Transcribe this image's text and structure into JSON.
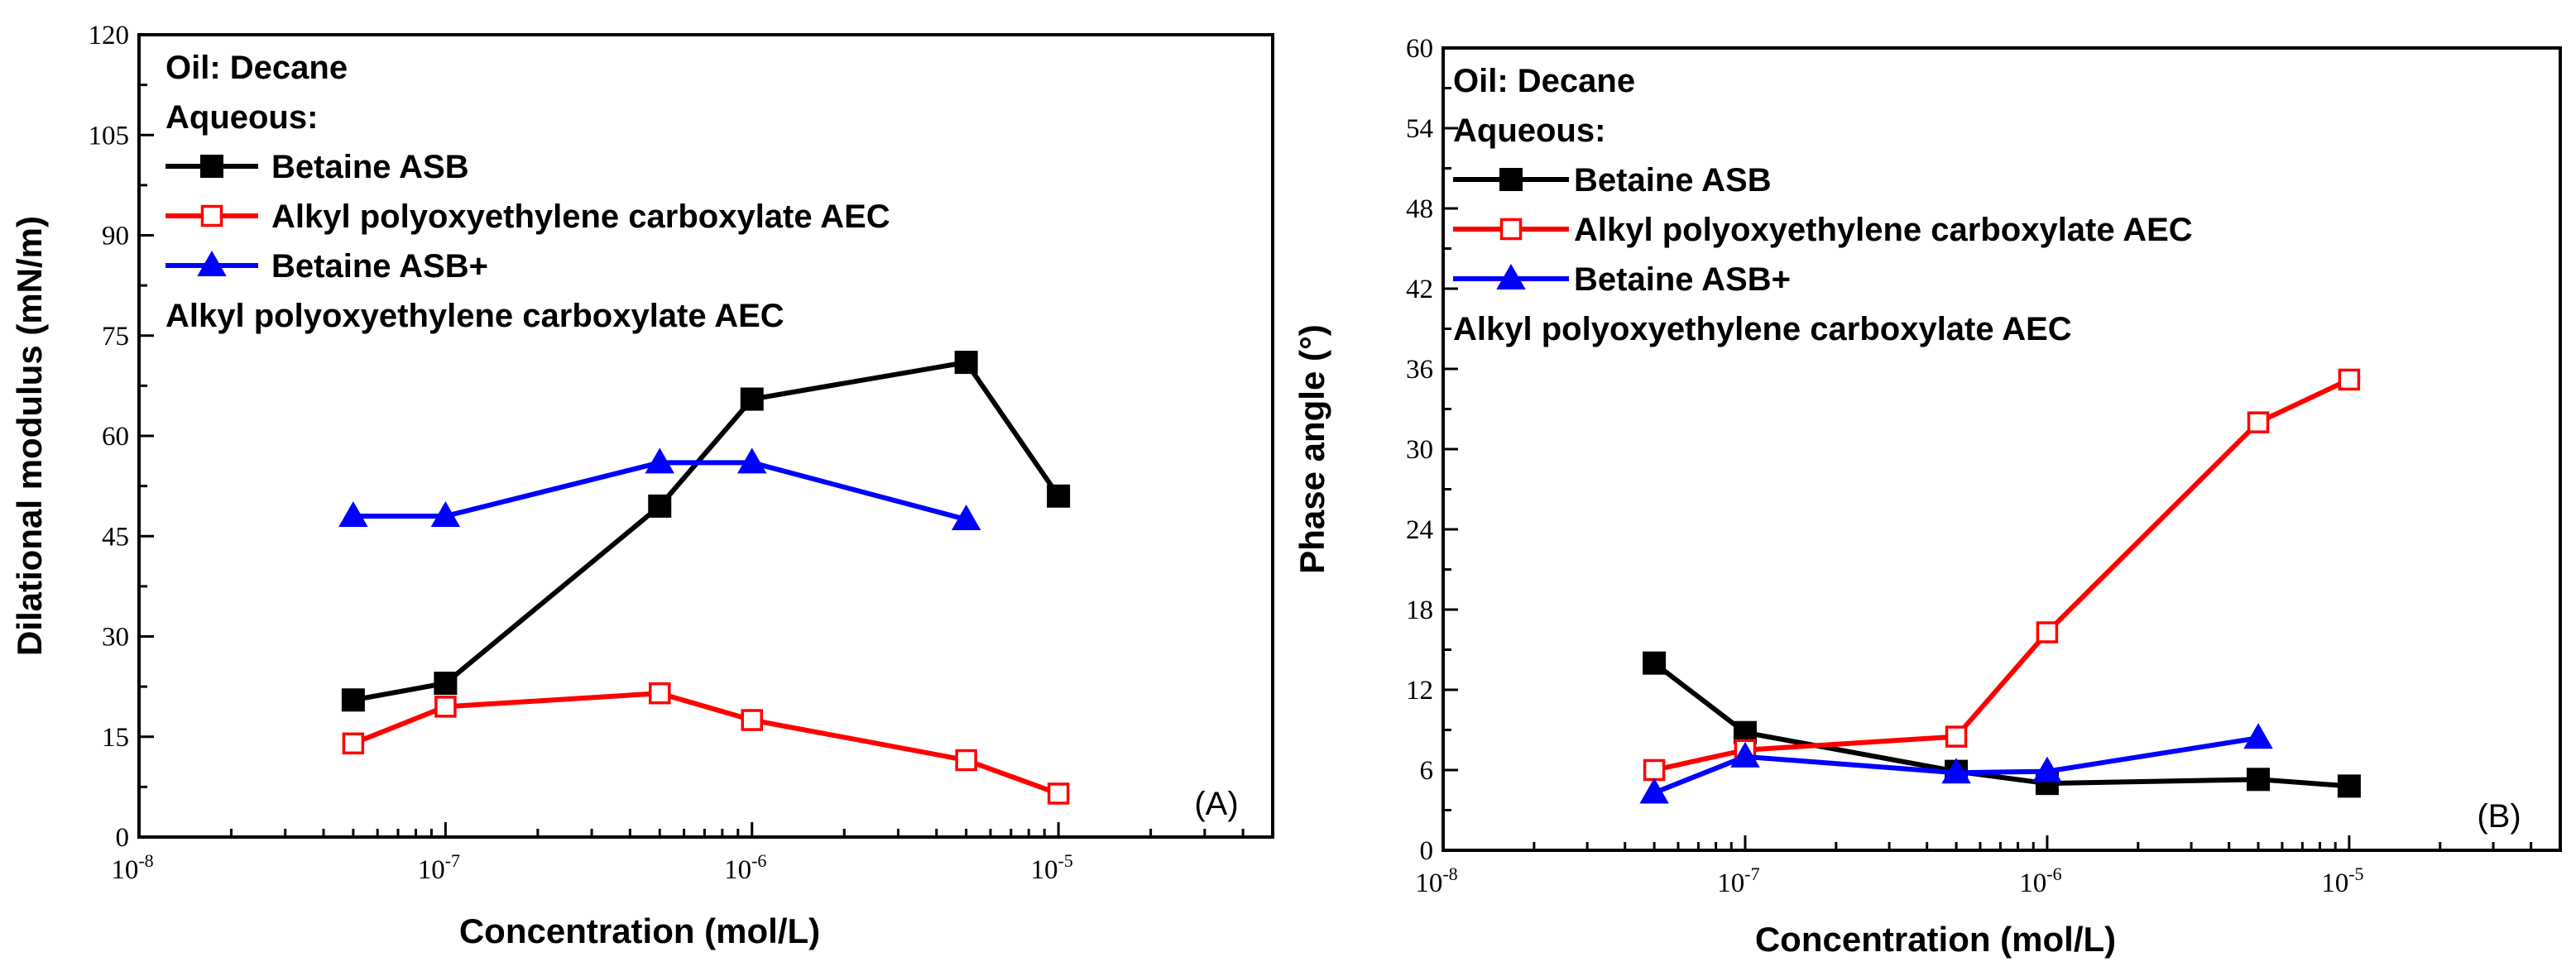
{
  "chart_data": [
    {
      "panel": "A",
      "type": "line",
      "title": "",
      "panel_label": "(A)",
      "xlabel": "Concentration (mol/L)",
      "ylabel": "Dilational modulus (mN/m)",
      "xscale": "log",
      "xlim": [
        1e-08,
        5e-05
      ],
      "ylim": [
        0,
        120
      ],
      "yticks": [
        0,
        15,
        30,
        45,
        60,
        75,
        90,
        105,
        120
      ],
      "xticks": [
        {
          "value": 1e-08,
          "base": "10",
          "exp": "-8"
        },
        {
          "value": 1e-07,
          "base": "10",
          "exp": "-7"
        },
        {
          "value": 1e-06,
          "base": "10",
          "exp": "-6"
        },
        {
          "value": 1e-05,
          "base": "10",
          "exp": "-5"
        }
      ],
      "legend": {
        "position": "top-left",
        "oil_label": "Oil:  Decane",
        "aqueous_label": "Aqueous:",
        "extra_line": "Alkyl polyoxyethylene carboxylate AEC"
      },
      "series": [
        {
          "name": "Betaine ASB",
          "color": "#000000",
          "marker": "square-filled",
          "x": [
            5e-08,
            1e-07,
            5e-07,
            1e-06,
            5e-06,
            1e-05
          ],
          "y": [
            20.5,
            23,
            49.5,
            65.5,
            71,
            51
          ]
        },
        {
          "name": "Alkyl polyoxyethylene carboxylate AEC",
          "color": "#ff0000",
          "marker": "square-open",
          "x": [
            5e-08,
            1e-07,
            5e-07,
            1e-06,
            5e-06,
            1e-05
          ],
          "y": [
            14,
            19.5,
            21.5,
            17.5,
            11.5,
            6.5
          ]
        },
        {
          "name": "Betaine ASB+",
          "color": "#0000ff",
          "marker": "triangle-filled",
          "x": [
            5e-08,
            1e-07,
            5e-07,
            1e-06,
            5e-06
          ],
          "y": [
            48,
            48,
            56,
            56,
            47.5
          ]
        }
      ]
    },
    {
      "panel": "B",
      "type": "line",
      "title": "",
      "panel_label": "(B)",
      "xlabel": "Concentration (mol/L)",
      "ylabel": "Phase angle (°)",
      "xscale": "log",
      "xlim": [
        1e-08,
        5e-05
      ],
      "ylim": [
        0,
        60
      ],
      "yticks": [
        0,
        6,
        12,
        18,
        24,
        30,
        36,
        42,
        48,
        54,
        60
      ],
      "xticks": [
        {
          "value": 1e-08,
          "base": "10",
          "exp": "-8"
        },
        {
          "value": 1e-07,
          "base": "10",
          "exp": "-7"
        },
        {
          "value": 1e-06,
          "base": "10",
          "exp": "-6"
        },
        {
          "value": 1e-05,
          "base": "10",
          "exp": "-5"
        }
      ],
      "legend": {
        "position": "top-left",
        "oil_label": "Oil:  Decane",
        "aqueous_label": "Aqueous:",
        "extra_line": "Alkyl polyoxyethylene carboxylate AEC"
      },
      "series": [
        {
          "name": "Betaine ASB",
          "color": "#000000",
          "marker": "square-filled",
          "x": [
            5e-08,
            1e-07,
            5e-07,
            1e-06,
            5e-06,
            1e-05
          ],
          "y": [
            14,
            8.8,
            5.9,
            5,
            5.3,
            4.8
          ]
        },
        {
          "name": "Alkyl polyoxyethylene carboxylate AEC",
          "color": "#ff0000",
          "marker": "square-open",
          "x": [
            5e-08,
            1e-07,
            5e-07,
            1e-06,
            5e-06,
            1e-05
          ],
          "y": [
            6,
            7.5,
            8.5,
            16.3,
            32,
            35.2
          ]
        },
        {
          "name": "Betaine ASB+",
          "color": "#0000ff",
          "marker": "triangle-filled",
          "x": [
            5e-08,
            1e-07,
            5e-07,
            1e-06,
            5e-06
          ],
          "y": [
            4.3,
            7,
            5.8,
            5.9,
            8.4
          ]
        }
      ]
    }
  ]
}
